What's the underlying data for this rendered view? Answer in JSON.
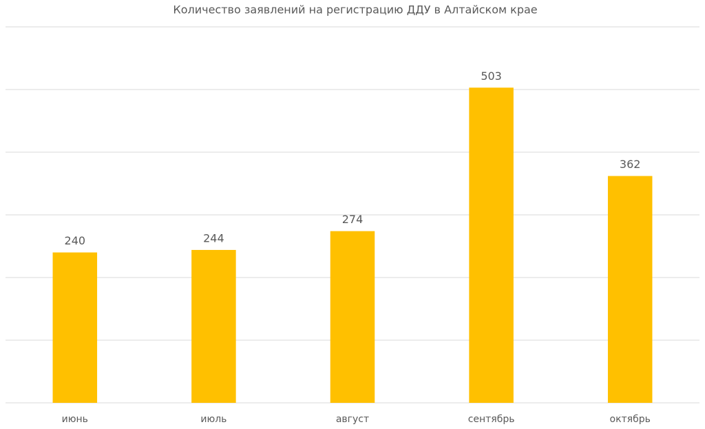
{
  "chart_data": {
    "type": "bar",
    "title": "Количество заявлений на регистрацию ДДУ в Алтайском крае",
    "categories": [
      "июнь",
      "июль",
      "август",
      "сентябрь",
      "октябрь"
    ],
    "values": [
      240,
      244,
      274,
      503,
      362
    ],
    "color": "#ffc000",
    "ylim": [
      0,
      600
    ],
    "yticks": [
      0,
      100,
      200,
      300,
      400,
      500,
      600
    ],
    "grid": true
  }
}
